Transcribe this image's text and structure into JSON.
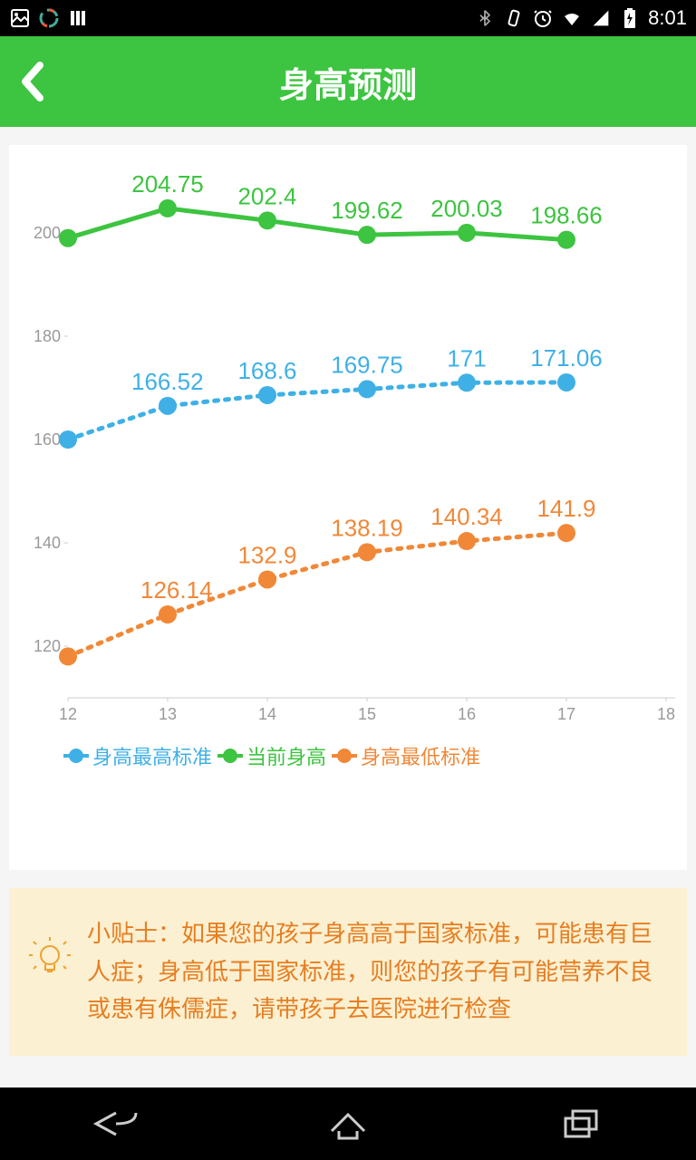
{
  "status": {
    "time": "8:01"
  },
  "header": {
    "title": "身高预测"
  },
  "chart": {
    "ylim": [
      110,
      210
    ],
    "xlim": [
      12,
      18
    ],
    "yticks": [
      120,
      140,
      160,
      180,
      200
    ],
    "xticks": [
      12,
      13,
      14,
      15,
      16,
      17,
      18
    ],
    "series": {
      "current": {
        "label": "当前身高",
        "color": "#3dc440",
        "style": "solid",
        "data": [
          {
            "x": 12,
            "y": 199,
            "label": ""
          },
          {
            "x": 13,
            "y": 204.75,
            "label": "204.75"
          },
          {
            "x": 14,
            "y": 202.4,
            "label": "202.4"
          },
          {
            "x": 15,
            "y": 199.62,
            "label": "199.62"
          },
          {
            "x": 16,
            "y": 200.03,
            "label": "200.03"
          },
          {
            "x": 17,
            "y": 198.66,
            "label": "198.66"
          }
        ]
      },
      "max": {
        "label": "身高最高标准",
        "color": "#3fb0e6",
        "style": "dotted",
        "data": [
          {
            "x": 12,
            "y": 160,
            "label": ""
          },
          {
            "x": 13,
            "y": 166.52,
            "label": "166.52"
          },
          {
            "x": 14,
            "y": 168.6,
            "label": "168.6"
          },
          {
            "x": 15,
            "y": 169.75,
            "label": "169.75"
          },
          {
            "x": 16,
            "y": 171,
            "label": "171"
          },
          {
            "x": 17,
            "y": 171.06,
            "label": "171.06"
          }
        ]
      },
      "min": {
        "label": "身高最低标准",
        "color": "#f08838",
        "style": "dotted",
        "data": [
          {
            "x": 12,
            "y": 118,
            "label": ""
          },
          {
            "x": 13,
            "y": 126.14,
            "label": "126.14"
          },
          {
            "x": 14,
            "y": 132.9,
            "label": "132.9"
          },
          {
            "x": 15,
            "y": 138.19,
            "label": "138.19"
          },
          {
            "x": 16,
            "y": 140.34,
            "label": "140.34"
          },
          {
            "x": 17,
            "y": 141.9,
            "label": "141.9"
          }
        ]
      }
    },
    "legend_order": [
      "max",
      "current",
      "min"
    ]
  },
  "tip": {
    "text": "小贴士：如果您的孩子身高高于国家标准，可能患有巨人症；身高低于国家标准，则您的孩子有可能营养不良或患有侏儒症，请带孩子去医院进行检查"
  }
}
